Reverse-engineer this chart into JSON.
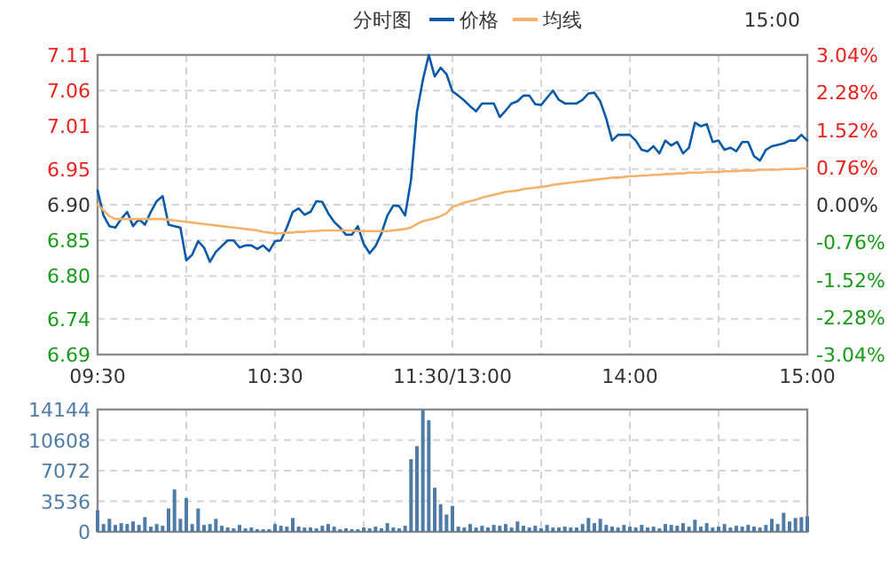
{
  "chart_data": [
    {
      "type": "line",
      "title": "分时图",
      "legend": "top",
      "grid": true,
      "annotations": [
        "15:00"
      ],
      "categories": [
        "09:30",
        null,
        null,
        null,
        null,
        null,
        null,
        null,
        null,
        null,
        null,
        null,
        null,
        null,
        null,
        null,
        null,
        null,
        null,
        null,
        null,
        null,
        null,
        null,
        null,
        null,
        null,
        null,
        null,
        null,
        "10:30",
        null,
        null,
        null,
        null,
        null,
        null,
        null,
        null,
        null,
        null,
        null,
        null,
        null,
        null,
        null,
        null,
        null,
        null,
        null,
        null,
        null,
        null,
        null,
        null,
        null,
        null,
        null,
        null,
        null,
        "11:30/13:00",
        null,
        null,
        null,
        null,
        null,
        null,
        null,
        null,
        null,
        null,
        null,
        null,
        null,
        null,
        null,
        null,
        null,
        null,
        null,
        null,
        null,
        null,
        null,
        null,
        null,
        null,
        null,
        null,
        null,
        "14:00",
        null,
        null,
        null,
        null,
        null,
        null,
        null,
        null,
        null,
        null,
        null,
        null,
        null,
        null,
        null,
        null,
        null,
        null,
        null,
        null,
        null,
        null,
        null,
        null,
        null,
        null,
        null,
        null,
        null,
        "15:00"
      ],
      "ylim": [
        6.69,
        7.11
      ],
      "yticks": [
        {
          "value": 6.69,
          "label": "6.69"
        },
        {
          "value": 6.74,
          "label": "6.74"
        },
        {
          "value": 6.8,
          "label": "6.80"
        },
        {
          "value": 6.85,
          "label": "6.85"
        },
        {
          "value": 6.9,
          "label": "6.90"
        },
        {
          "value": 6.95,
          "label": "6.95"
        },
        {
          "value": 7.01,
          "label": "7.01"
        },
        {
          "value": 7.06,
          "label": "7.06"
        },
        {
          "value": 7.11,
          "label": "7.11"
        }
      ],
      "y2lim": [
        -3.04,
        3.04
      ],
      "y2ticks": [
        {
          "value": -3.04,
          "label": "-3.04%"
        },
        {
          "value": -2.28,
          "label": "-2.28%"
        },
        {
          "value": -1.52,
          "label": "-1.52%"
        },
        {
          "value": -0.76,
          "label": "-0.76%"
        },
        {
          "value": 0,
          "label": "0.00%"
        },
        {
          "value": 0.76,
          "label": "0.76%"
        },
        {
          "value": 1.52,
          "label": "1.52%"
        },
        {
          "value": 2.28,
          "label": "2.28%"
        },
        {
          "value": 3.04,
          "label": "3.04%"
        }
      ],
      "series": [
        {
          "name": "价格",
          "color": "#0b5aa8",
          "values": [
            6.92,
            6.885,
            6.87,
            6.868,
            6.88,
            6.89,
            6.87,
            6.88,
            6.872,
            6.89,
            6.905,
            6.912,
            6.872,
            6.87,
            6.868,
            6.822,
            6.83,
            6.849,
            6.84,
            6.82,
            6.834,
            6.842,
            6.85,
            6.85,
            6.84,
            6.843,
            6.843,
            6.838,
            6.843,
            6.835,
            6.849,
            6.85,
            6.868,
            6.89,
            6.895,
            6.886,
            6.89,
            6.905,
            6.904,
            6.888,
            6.876,
            6.868,
            6.858,
            6.858,
            6.87,
            6.845,
            6.832,
            6.842,
            6.86,
            6.885,
            6.899,
            6.898,
            6.885,
            6.935,
            7.03,
            7.075,
            7.11,
            7.08,
            7.092,
            7.083,
            7.059,
            7.053,
            7.046,
            7.038,
            7.031,
            7.042,
            7.042,
            7.042,
            7.023,
            7.032,
            7.042,
            7.045,
            7.053,
            7.053,
            7.041,
            7.04,
            7.05,
            7.06,
            7.047,
            7.042,
            7.042,
            7.042,
            7.047,
            7.056,
            7.057,
            7.045,
            7.021,
            6.99,
            6.998,
            6.998,
            6.998,
            6.99,
            6.977,
            6.975,
            6.982,
            6.972,
            6.99,
            6.983,
            6.988,
            6.972,
            6.98,
            7.015,
            7.01,
            7.013,
            6.988,
            6.99,
            6.977,
            6.98,
            6.975,
            6.988,
            6.988,
            6.968,
            6.962,
            6.977,
            6.982,
            6.984,
            6.986,
            6.99,
            6.99,
            6.998,
            6.99
          ]
        },
        {
          "name": "均线",
          "color": "#f5b26b",
          "values": [
            6.9,
            6.892,
            6.884,
            6.88,
            6.88,
            6.88,
            6.88,
            6.88,
            6.88,
            6.88,
            6.88,
            6.88,
            6.879,
            6.878,
            6.877,
            6.876,
            6.875,
            6.874,
            6.873,
            6.872,
            6.871,
            6.87,
            6.869,
            6.868,
            6.867,
            6.866,
            6.865,
            6.864,
            6.862,
            6.861,
            6.86,
            6.86,
            6.861,
            6.861,
            6.862,
            6.862,
            6.863,
            6.863,
            6.864,
            6.864,
            6.864,
            6.864,
            6.864,
            6.864,
            6.863,
            6.863,
            6.863,
            6.863,
            6.863,
            6.863,
            6.864,
            6.865,
            6.866,
            6.868,
            6.873,
            6.877,
            6.879,
            6.881,
            6.884,
            6.888,
            6.897,
            6.9,
            6.903,
            6.905,
            6.907,
            6.91,
            6.912,
            6.914,
            6.916,
            6.918,
            6.919,
            6.92,
            6.922,
            6.923,
            6.924,
            6.925,
            6.926,
            6.928,
            6.929,
            6.93,
            6.931,
            6.932,
            6.933,
            6.934,
            6.935,
            6.936,
            6.937,
            6.938,
            6.938,
            6.939,
            6.94,
            6.94,
            6.941,
            6.941,
            6.942,
            6.942,
            6.943,
            6.943,
            6.944,
            6.944,
            6.945,
            6.945,
            6.945,
            6.946,
            6.946,
            6.946,
            6.947,
            6.947,
            6.947,
            6.948,
            6.948,
            6.948,
            6.949,
            6.949,
            6.949,
            6.949,
            6.95,
            6.95,
            6.95,
            6.951,
            6.951
          ]
        }
      ]
    },
    {
      "type": "bar",
      "grid": true,
      "tick_labels": "y",
      "categories": [
        null,
        null,
        null,
        null,
        null,
        null,
        null,
        null,
        null,
        null,
        null,
        null,
        null,
        null,
        null,
        null,
        null,
        null,
        null,
        null,
        null,
        null,
        null,
        null,
        null,
        null,
        null,
        null,
        null,
        null,
        null,
        null,
        null,
        null,
        null,
        null,
        null,
        null,
        null,
        null,
        null,
        null,
        null,
        null,
        null,
        null,
        null,
        null,
        null,
        null,
        null,
        null,
        null,
        null,
        null,
        null,
        null,
        null,
        null,
        null,
        null,
        null,
        null,
        null,
        null,
        null,
        null,
        null,
        null,
        null,
        null,
        null,
        null,
        null,
        null,
        null,
        null,
        null,
        null,
        null,
        null,
        null,
        null,
        null,
        null,
        null,
        null,
        null,
        null,
        null,
        null,
        null,
        null,
        null,
        null,
        null,
        null,
        null,
        null,
        null,
        null,
        null,
        null,
        null,
        null,
        null,
        null,
        null,
        null,
        null,
        null,
        null,
        null,
        null,
        null,
        null,
        null,
        null,
        null,
        null,
        null
      ],
      "ylim": [
        0,
        14144
      ],
      "yticks": [
        {
          "value": 0,
          "label": "0"
        },
        {
          "value": 3536,
          "label": "3536"
        },
        {
          "value": 7072,
          "label": "7072"
        },
        {
          "value": 10608,
          "label": "10608"
        },
        {
          "value": 14144,
          "label": "14144"
        }
      ],
      "series": [
        {
          "color": "#4f7ca5",
          "values": [
            2500,
            900,
            1500,
            800,
            1000,
            900,
            1200,
            800,
            1700,
            600,
            900,
            700,
            2700,
            4900,
            1500,
            3900,
            900,
            2700,
            800,
            900,
            1500,
            700,
            500,
            400,
            800,
            400,
            500,
            300,
            300,
            300,
            900,
            700,
            600,
            1600,
            600,
            500,
            500,
            400,
            700,
            900,
            600,
            300,
            400,
            300,
            300,
            500,
            400,
            600,
            400,
            1000,
            500,
            400,
            700,
            8400,
            9900,
            14100,
            12900,
            5100,
            3200,
            2000,
            3000,
            600,
            500,
            900,
            500,
            700,
            500,
            800,
            700,
            900,
            500,
            1200,
            700,
            500,
            700,
            400,
            800,
            500,
            500,
            600,
            500,
            500,
            900,
            1600,
            1000,
            1500,
            800,
            600,
            500,
            800,
            600,
            500,
            800,
            500,
            600,
            400,
            900,
            800,
            700,
            1000,
            600,
            1400,
            600,
            1000,
            500,
            600,
            900,
            500,
            700,
            600,
            800,
            600,
            500,
            800,
            1500,
            900,
            2200,
            1200,
            1600,
            1700,
            1800
          ]
        }
      ]
    }
  ]
}
